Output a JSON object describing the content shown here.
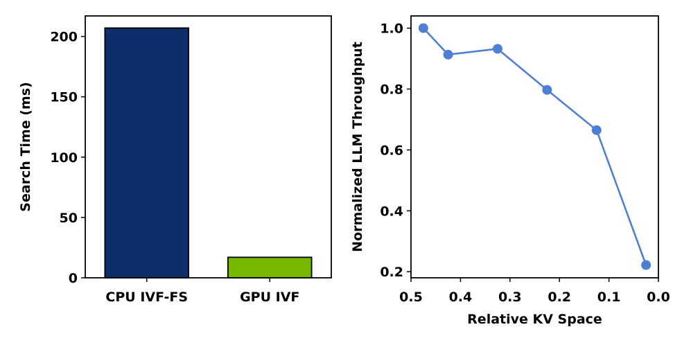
{
  "chart_data": [
    {
      "type": "bar",
      "categories": [
        "CPU IVF-FS",
        "GPU IVF"
      ],
      "values": [
        207,
        17
      ],
      "colors": [
        "#0e2d6b",
        "#76b900"
      ],
      "edgecolor": "#000000",
      "title": "",
      "xlabel": "",
      "ylabel": "Search Time (ms)",
      "ylim": [
        0,
        217
      ],
      "yticks": [
        0,
        50,
        100,
        150,
        200
      ],
      "ytick_labels": [
        "0",
        "50",
        "100",
        "150",
        "200"
      ],
      "grid": false
    },
    {
      "type": "line",
      "x": [
        0.475,
        0.425,
        0.325,
        0.225,
        0.125,
        0.025
      ],
      "y": [
        1.0,
        0.913,
        0.932,
        0.797,
        0.665,
        0.222
      ],
      "color": "#4f7fd2",
      "marker": "circle",
      "title": "",
      "xlabel": "Relative KV Space",
      "ylabel": "Normalized LLM Throughput",
      "xlim": [
        0.5,
        0.0
      ],
      "ylim": [
        0.18,
        1.04
      ],
      "xticks": [
        0.5,
        0.4,
        0.3,
        0.2,
        0.1,
        0.0
      ],
      "xtick_labels": [
        "0.5",
        "0.4",
        "0.3",
        "0.2",
        "0.1",
        "0.0"
      ],
      "yticks": [
        0.2,
        0.4,
        0.6,
        0.8,
        1.0
      ],
      "ytick_labels": [
        "0.2",
        "0.4",
        "0.6",
        "0.8",
        "1.0"
      ],
      "grid": false
    }
  ]
}
